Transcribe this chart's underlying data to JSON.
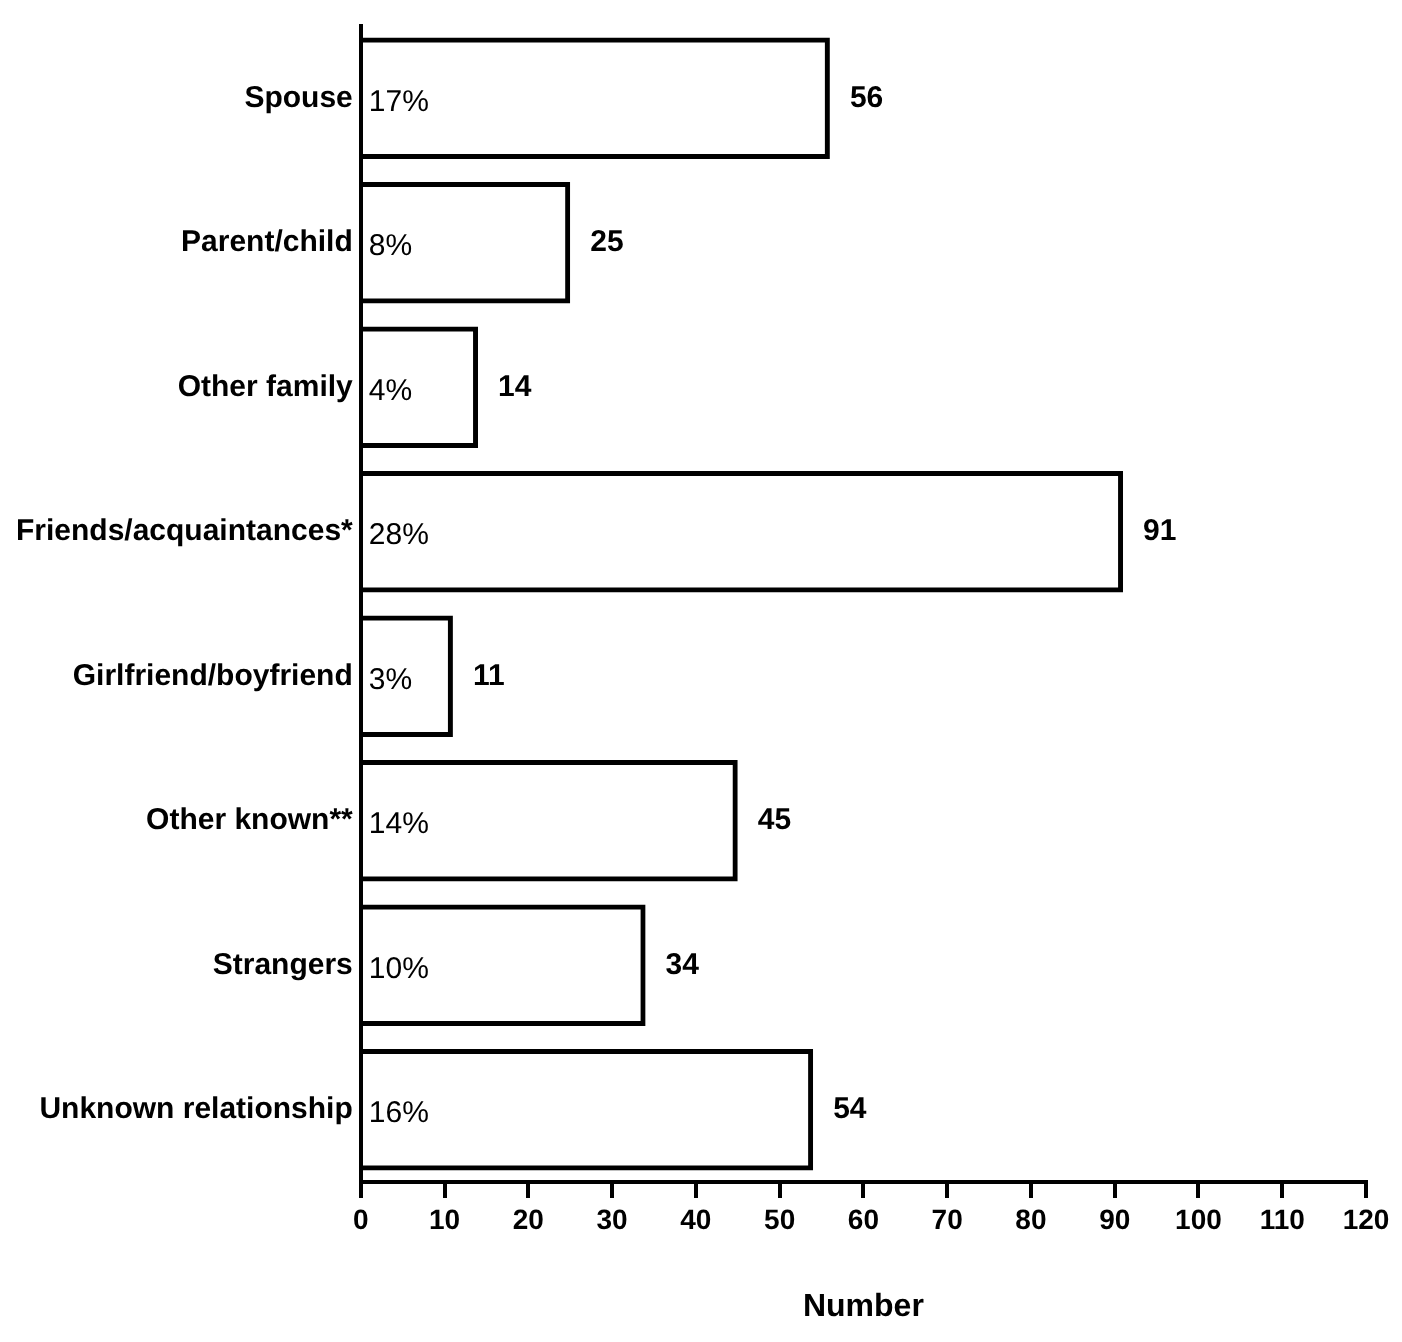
{
  "chart_data": {
    "type": "bar",
    "orientation": "horizontal",
    "xlabel": "Number",
    "categories": [
      "Spouse",
      "Parent/child",
      "Other family",
      "Friends/acquaintances*",
      "Girlfriend/boyfriend",
      "Other known**",
      "Strangers",
      "Unknown relationship"
    ],
    "values": [
      56,
      25,
      14,
      91,
      11,
      45,
      34,
      54
    ],
    "color": "#000000",
    "data_labels": true,
    "xlim": [
      0,
      120
    ],
    "xticks": [
      0,
      10,
      20,
      30,
      40,
      50,
      60,
      70,
      80,
      90,
      100,
      110,
      120
    ],
    "grid": false,
    "legend": false,
    "annotations": [
      "17%",
      "8%",
      "4%",
      "28%",
      "3%",
      "14%",
      "10%",
      "16%"
    ]
  }
}
